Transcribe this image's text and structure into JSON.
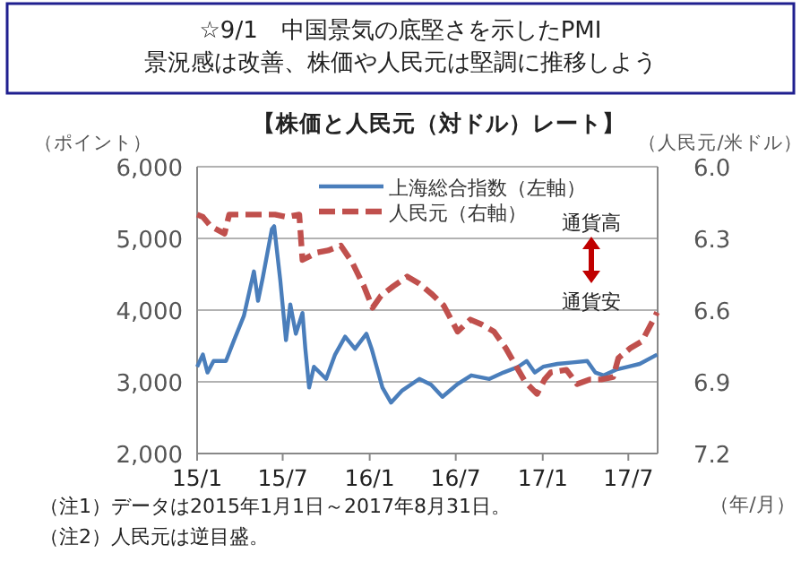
{
  "chart_data": {
    "type": "line",
    "title": "☆9/1　中国景気の底堅さを示したPMI\n景況感は改善、株価や人民元は堅調に推移しよう",
    "subtitle": "【株価と人民元（対ドル）レート】",
    "ylabel": "（ポイント）",
    "y2label": "（人民元/米ドル）",
    "xlabel": "（年/月）",
    "xlim": [
      "2015-01-01",
      "2017-09-01"
    ],
    "xticks": [
      {
        "value": "2015-01-01",
        "label": "15/1"
      },
      {
        "value": "2015-07-01",
        "label": "15/7"
      },
      {
        "value": "2016-01-01",
        "label": "16/1"
      },
      {
        "value": "2016-07-01",
        "label": "16/7"
      },
      {
        "value": "2017-01-01",
        "label": "17/1"
      },
      {
        "value": "2017-07-01",
        "label": "17/7"
      }
    ],
    "ylim": [
      2000,
      6000
    ],
    "yticks": [
      {
        "value": 2000,
        "label": "2,000"
      },
      {
        "value": 3000,
        "label": "3,000"
      },
      {
        "value": 4000,
        "label": "4,000"
      },
      {
        "value": 5000,
        "label": "5,000"
      },
      {
        "value": 6000,
        "label": "6,000"
      }
    ],
    "y2lim": [
      7.2,
      6.0
    ],
    "y2ticks": [
      {
        "value": 6.0,
        "label": "6.0"
      },
      {
        "value": 6.3,
        "label": "6.3"
      },
      {
        "value": 6.6,
        "label": "6.6"
      },
      {
        "value": 6.9,
        "label": "6.9"
      },
      {
        "value": 7.2,
        "label": "7.2"
      }
    ],
    "grid": "y",
    "legend": "top",
    "line_style": "solid",
    "series": [
      {
        "name": "上海総合指数（左軸）",
        "color": "#4a7ebb",
        "x": [
          "2015-01-01",
          "2015-01-13",
          "2015-01-23",
          "2015-02-05",
          "2015-03-03",
          "2015-03-20",
          "2015-04-10",
          "2015-05-01",
          "2015-05-10",
          "2015-05-20",
          "2015-06-08",
          "2015-06-13",
          "2015-06-26",
          "2015-07-08",
          "2015-07-17",
          "2015-07-29",
          "2015-08-12",
          "2015-08-18",
          "2015-08-26",
          "2015-09-05",
          "2015-10-01",
          "2015-10-20",
          "2015-11-10",
          "2015-12-01",
          "2015-12-25",
          "2016-01-05",
          "2016-01-28",
          "2016-02-15",
          "2016-03-10",
          "2016-04-15",
          "2016-05-10",
          "2016-06-03",
          "2016-07-03",
          "2016-08-03",
          "2016-09-10",
          "2016-10-10",
          "2016-11-10",
          "2016-11-28",
          "2016-12-15",
          "2017-01-02",
          "2017-02-01",
          "2017-03-05",
          "2017-04-05",
          "2017-04-22",
          "2017-05-10",
          "2017-06-05",
          "2017-07-01",
          "2017-07-25",
          "2017-08-31"
        ],
        "values": [
          3210,
          3380,
          3130,
          3290,
          3290,
          3580,
          3920,
          4540,
          4130,
          4460,
          5130,
          5170,
          4420,
          3580,
          4080,
          3670,
          3960,
          3460,
          2920,
          3210,
          3040,
          3380,
          3630,
          3460,
          3670,
          3460,
          2920,
          2710,
          2880,
          3040,
          2960,
          2790,
          2960,
          3090,
          3040,
          3130,
          3210,
          3290,
          3130,
          3210,
          3250,
          3270,
          3290,
          3130,
          3090,
          3170,
          3210,
          3250,
          3380
        ]
      },
      {
        "name": "人民元（右軸）",
        "color": "#c0504d",
        "axis": "y2",
        "line_style": "dashed",
        "x": [
          "2015-01-01",
          "2015-01-13",
          "2015-01-30",
          "2015-02-28",
          "2015-03-10",
          "2015-04-01",
          "2015-04-25",
          "2015-05-20",
          "2015-06-15",
          "2015-07-10",
          "2015-08-05",
          "2015-08-12",
          "2015-09-10",
          "2015-10-05",
          "2015-11-01",
          "2015-11-25",
          "2015-12-20",
          "2016-01-07",
          "2016-01-25",
          "2016-02-20",
          "2016-03-20",
          "2016-04-15",
          "2016-05-10",
          "2016-06-05",
          "2016-07-05",
          "2016-08-01",
          "2016-08-25",
          "2016-09-20",
          "2016-10-15",
          "2016-11-10",
          "2016-11-25",
          "2016-12-20",
          "2017-01-05",
          "2017-01-18",
          "2017-02-20",
          "2017-03-15",
          "2017-04-10",
          "2017-05-05",
          "2017-05-30",
          "2017-06-10",
          "2017-07-05",
          "2017-07-30",
          "2017-08-31"
        ],
        "values": [
          6.2,
          6.21,
          6.25,
          6.28,
          6.2,
          6.2,
          6.2,
          6.2,
          6.2,
          6.21,
          6.2,
          6.39,
          6.36,
          6.35,
          6.33,
          6.4,
          6.5,
          6.59,
          6.54,
          6.5,
          6.46,
          6.49,
          6.53,
          6.58,
          6.69,
          6.64,
          6.66,
          6.69,
          6.76,
          6.85,
          6.9,
          6.95,
          6.89,
          6.86,
          6.85,
          6.91,
          6.89,
          6.89,
          6.88,
          6.8,
          6.76,
          6.73,
          6.61
        ]
      }
    ],
    "annotations": [
      "通貨高",
      "通貨安",
      "（注1）データは2015年1月1日～2017年8月31日。",
      "（注2）人民元は逆目盛。"
    ]
  }
}
